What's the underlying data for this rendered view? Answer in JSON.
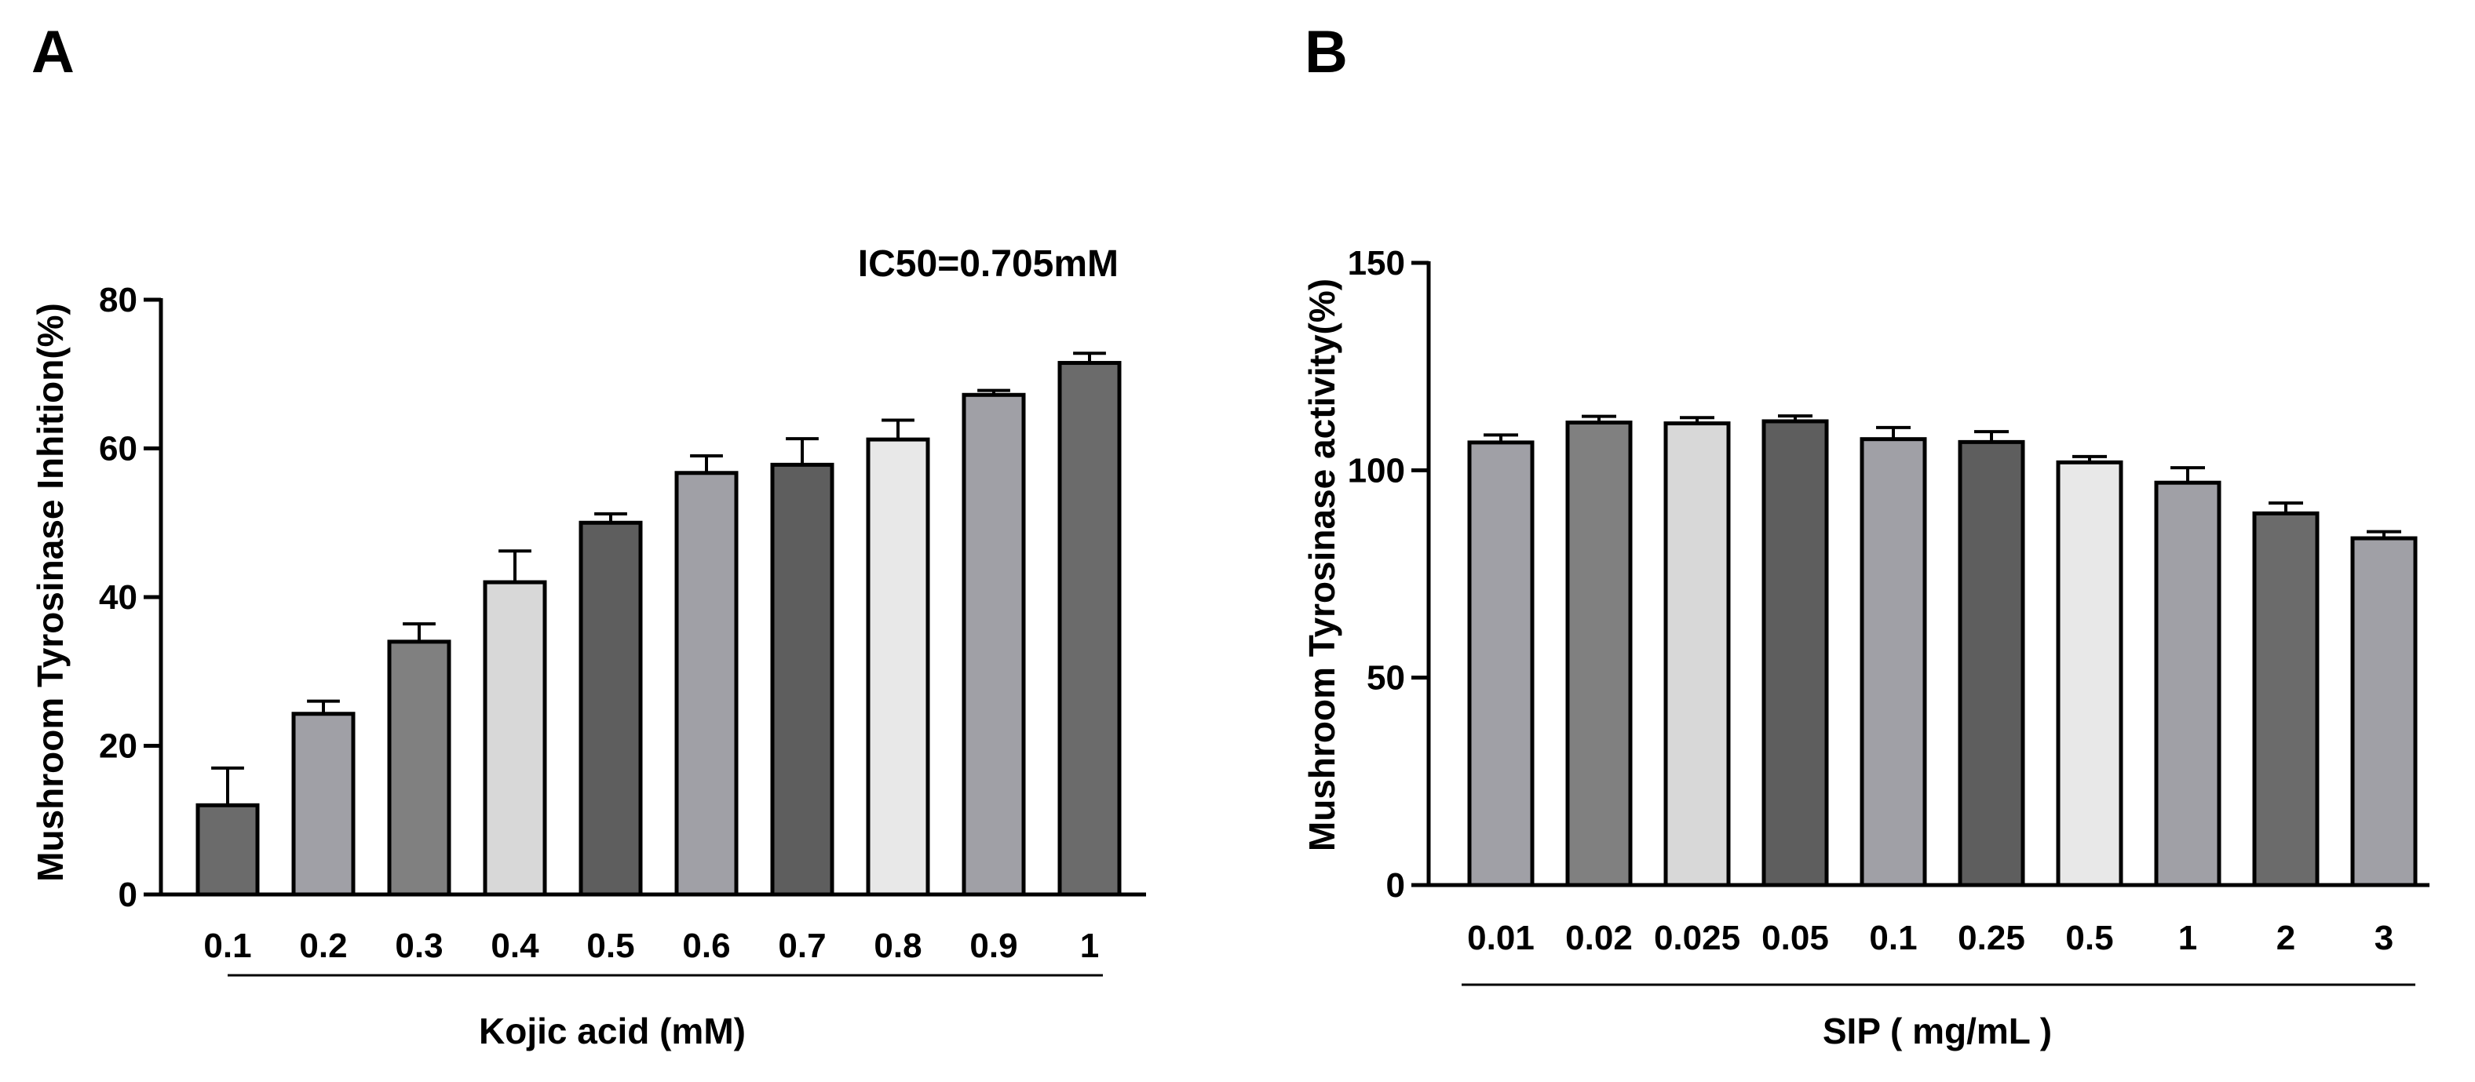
{
  "chart_data": [
    {
      "type": "bar",
      "panel_label": "A",
      "xlabel": "Kojic acid (mM)",
      "ylabel": "Mushroom Tyrosinase  Inhition(%)",
      "annotation": "IC50=0.705mM",
      "ylim": [
        0,
        80
      ],
      "yticks": [
        "0",
        "20",
        "40",
        "60",
        "80"
      ],
      "categories": [
        "0.1",
        "0.2",
        "0.3",
        "0.4",
        "0.5",
        "0.6",
        "0.7",
        "0.8",
        "0.9",
        "1"
      ],
      "values": [
        12,
        24.3,
        34,
        42,
        50,
        56.7,
        57.8,
        61.2,
        67.2,
        71.5
      ],
      "errors": [
        5,
        1.7,
        2.4,
        4.2,
        1.2,
        2.3,
        3.5,
        2.6,
        0.6,
        1.3
      ],
      "colors": [
        "#6b6b6b",
        "#a0a0a6",
        "#808080",
        "#d8d8d8",
        "#5e5e5e",
        "#a0a0a6",
        "#5e5e5e",
        "#e8e8e8",
        "#a0a0a6",
        "#6b6b6b"
      ]
    },
    {
      "type": "bar",
      "panel_label": "B",
      "xlabel": "SIP ( mg/mL )",
      "ylabel": "Mushroom Tyrosinase  activity(%)",
      "ylim": [
        0,
        150
      ],
      "yticks": [
        "0",
        "50",
        "100",
        "150"
      ],
      "categories": [
        "0.01",
        "0.02",
        "0.025",
        "0.05",
        "0.1",
        "0.25",
        "0.5",
        "1",
        "2",
        "3"
      ],
      "values": [
        106.7,
        111.5,
        111.3,
        111.8,
        107.5,
        106.8,
        101.9,
        97,
        89.6,
        83.6
      ],
      "errors": [
        1.8,
        1.5,
        1.4,
        1.3,
        2.8,
        2.5,
        1.4,
        3.6,
        2.5,
        1.6
      ],
      "colors": [
        "#a0a0a6",
        "#808080",
        "#d8d8d8",
        "#5e5e5e",
        "#a0a0a6",
        "#5e5e5e",
        "#e8e8e8",
        "#a0a0a6",
        "#6b6b6b",
        "#a0a0a6"
      ]
    }
  ]
}
